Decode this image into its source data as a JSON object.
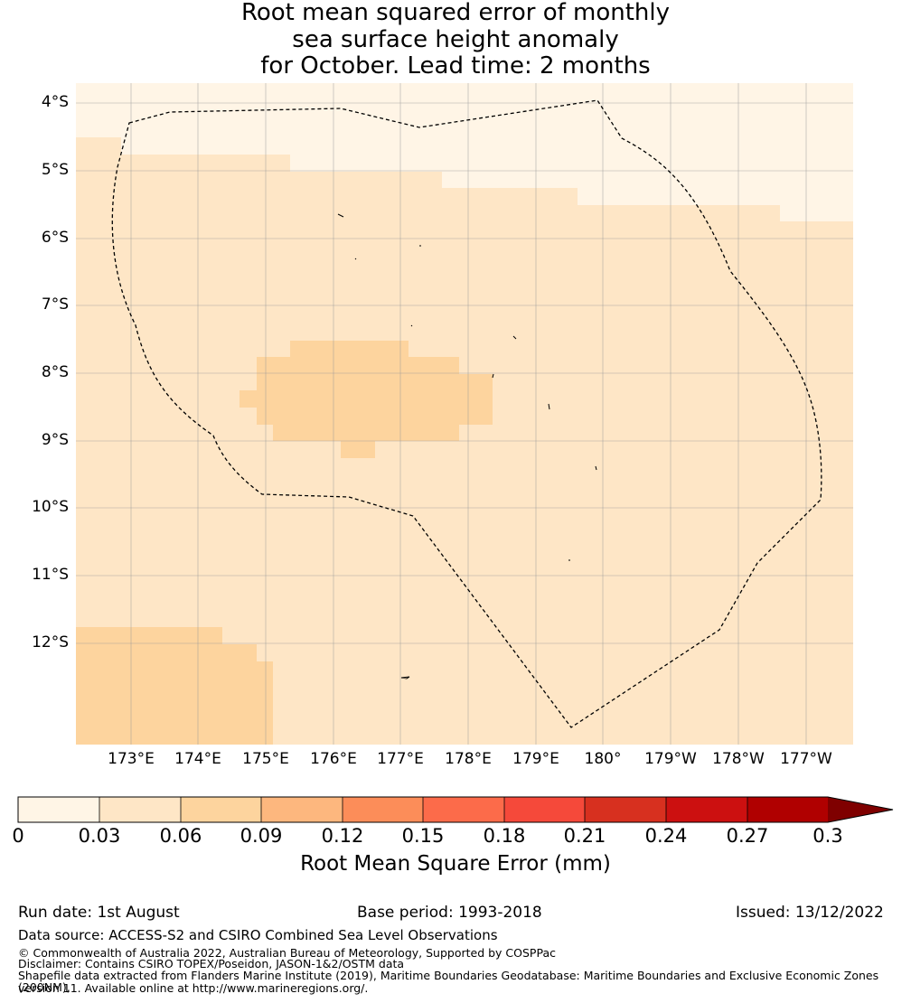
{
  "title": {
    "line1": "Root mean squared error of monthly",
    "line2": "sea surface height anomaly",
    "line3": "for October. Lead time: 2 months"
  },
  "map": {
    "lat_labels": [
      "4°S",
      "5°S",
      "6°S",
      "7°S",
      "8°S",
      "9°S",
      "10°S",
      "11°S",
      "12°S"
    ],
    "lon_labels": [
      "173°E",
      "174°E",
      "175°E",
      "176°E",
      "177°E",
      "178°E",
      "179°E",
      "180°",
      "179°W",
      "178°W",
      "177°W"
    ],
    "colors": {
      "level_0_003": "#fff5e6",
      "level_003_006": "#fee6c6",
      "level_006_009": "#fdd49e"
    }
  },
  "colorbar": {
    "ticks": [
      "0",
      "0.03",
      "0.06",
      "0.09",
      "0.12",
      "0.15",
      "0.18",
      "0.21",
      "0.24",
      "0.27",
      "0.3"
    ],
    "colors": [
      "#fff5e6",
      "#fee6c6",
      "#fdd49e",
      "#fdb77e",
      "#fc8d59",
      "#fc6b4a",
      "#f5493a",
      "#d7301f",
      "#cc1010",
      "#b00000",
      "#7f0000"
    ],
    "label": "Root Mean Square Error (mm)"
  },
  "footer": {
    "run_date": "Run date: 1st August",
    "base_period": "Base period: 1993-2018",
    "issued": "Issued: 13/12/2022",
    "data_source": "Data source: ACCESS-S2 and CSIRO Combined Sea Level Observations",
    "copyright": "© Commonwealth of Australia 2022, Australian Bureau of Meteorology, Supported by COSPPac",
    "disclaimer": "Disclaimer: Contains CSIRO TOPEX/Poseidon, JASON-1&2/OSTM data",
    "shapefile_line1": "Shapefile data extracted from Flanders Marine Institute (2019), Maritime Boundaries Geodatabase: Maritime Boundaries and Exclusive Economic Zones (200NM),",
    "shapefile_line2": "version 11. Available online at http://www.marineregions.org/."
  }
}
